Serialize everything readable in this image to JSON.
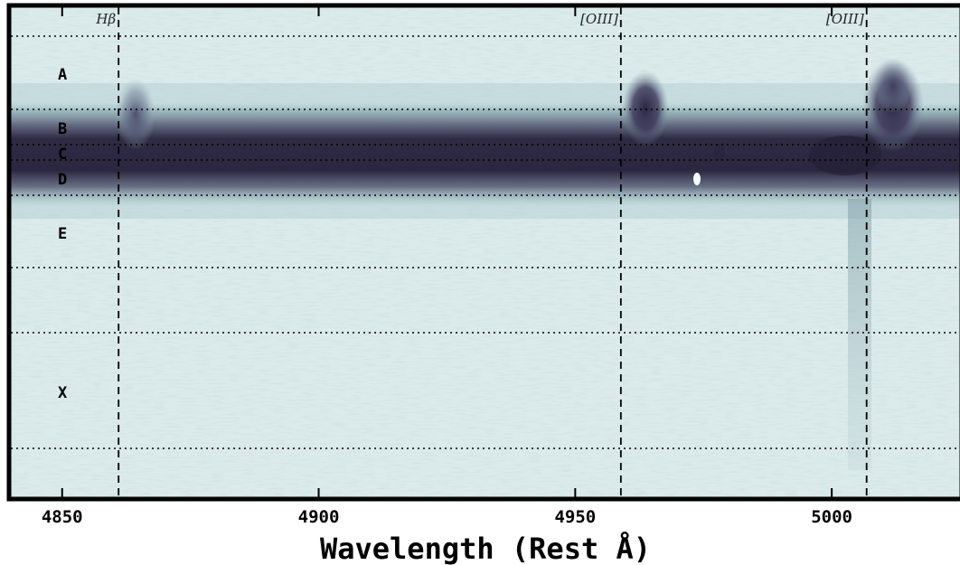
{
  "chart_data": {
    "type": "heatmap",
    "title": "",
    "xlabel": "Wavelength (Rest Å)",
    "ylabel": "",
    "xlim": [
      4840,
      5025
    ],
    "x_ticks": [
      4850,
      4900,
      4950,
      5000
    ],
    "x_tick_labels": [
      "4850",
      "4900",
      "4950",
      "5000"
    ],
    "grid": false,
    "emission_lines": [
      {
        "label": "Hβ",
        "wavelength": 4861
      },
      {
        "label": "[OIII]",
        "wavelength": 4958.9
      },
      {
        "label": "[OIII]",
        "wavelength": 5006.8
      }
    ],
    "regions": [
      {
        "label": "A"
      },
      {
        "label": "B"
      },
      {
        "label": "C"
      },
      {
        "label": "D"
      },
      {
        "label": "E"
      },
      {
        "label": ""
      },
      {
        "label": "X"
      },
      {
        "label": ""
      }
    ],
    "colors": {
      "background": "#dbeaea",
      "noise": "#a9c8ca",
      "continuum": "#2b2740",
      "emission": "#3b3555"
    }
  }
}
